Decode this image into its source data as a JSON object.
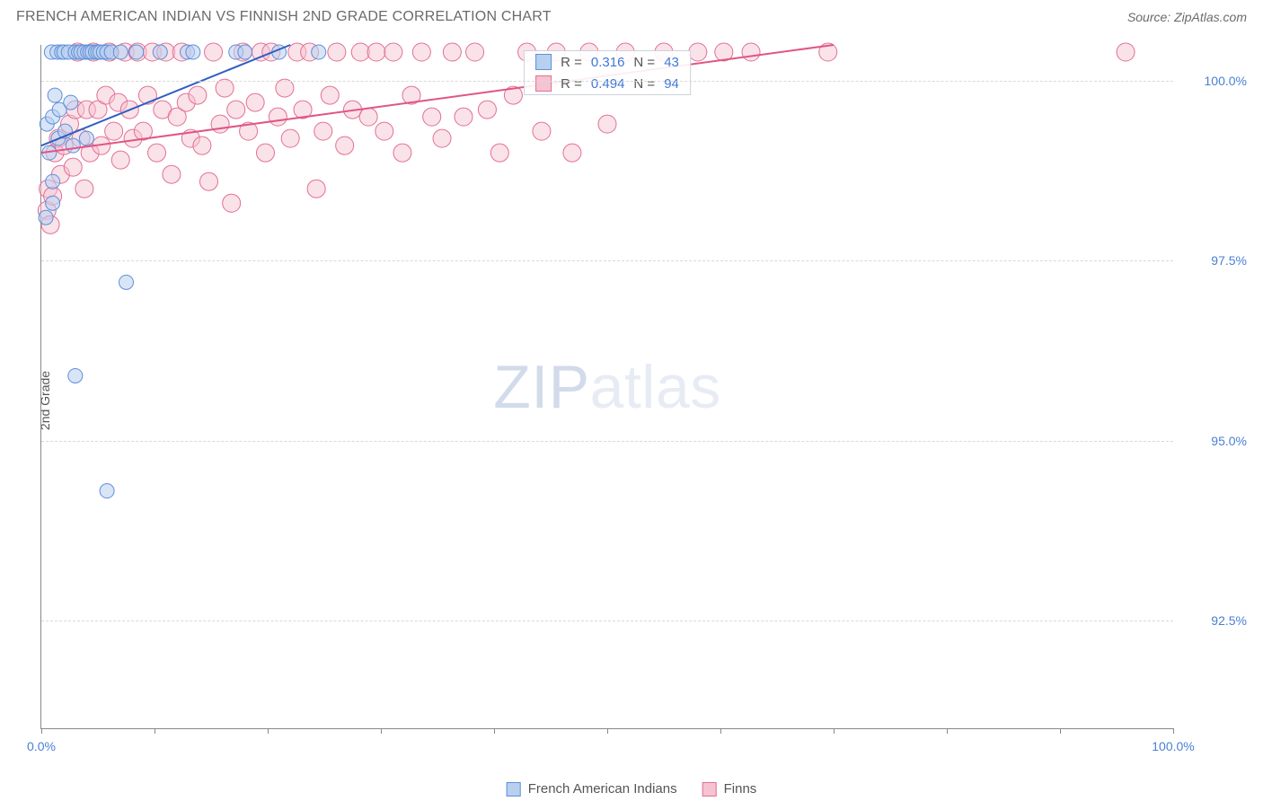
{
  "title": "FRENCH AMERICAN INDIAN VS FINNISH 2ND GRADE CORRELATION CHART",
  "source": "Source: ZipAtlas.com",
  "ylabel": "2nd Grade",
  "watermark": {
    "part1": "ZIP",
    "part2": "atlas"
  },
  "xlim": [
    0,
    100
  ],
  "ylim": [
    91,
    100.5
  ],
  "yticks": [
    {
      "v": 100.0,
      "label": "100.0%"
    },
    {
      "v": 97.5,
      "label": "97.5%"
    },
    {
      "v": 95.0,
      "label": "95.0%"
    },
    {
      "v": 92.5,
      "label": "92.5%"
    }
  ],
  "xticks": [
    0,
    10,
    20,
    30,
    40,
    50,
    60,
    70,
    80,
    90,
    100
  ],
  "xtick_labels": {
    "0": "0.0%",
    "100": "100.0%"
  },
  "series": [
    {
      "name": "French American Indians",
      "color_fill": "#b8d0f0",
      "color_stroke": "#5f8fd8",
      "marker_r": 8,
      "fill_opacity": 0.55,
      "R": "0.316",
      "N": "43",
      "trend": {
        "x1": 0,
        "y1": 99.1,
        "x2": 22,
        "y2": 100.5,
        "color": "#2f5fc0",
        "width": 2
      },
      "points": [
        [
          0.4,
          98.1
        ],
        [
          0.5,
          99.4
        ],
        [
          0.7,
          99.0
        ],
        [
          0.9,
          100.4
        ],
        [
          1.0,
          99.5
        ],
        [
          1.0,
          98.6
        ],
        [
          1.0,
          98.3
        ],
        [
          1.2,
          99.8
        ],
        [
          1.4,
          100.4
        ],
        [
          1.5,
          99.2
        ],
        [
          1.6,
          99.6
        ],
        [
          1.8,
          100.4
        ],
        [
          2.0,
          100.4
        ],
        [
          2.1,
          99.3
        ],
        [
          2.4,
          100.4
        ],
        [
          2.6,
          99.7
        ],
        [
          2.8,
          99.1
        ],
        [
          3.0,
          100.4
        ],
        [
          3.3,
          100.4
        ],
        [
          3.5,
          100.4
        ],
        [
          3.8,
          100.4
        ],
        [
          4.0,
          99.2
        ],
        [
          4.1,
          100.4
        ],
        [
          4.3,
          100.4
        ],
        [
          4.5,
          100.4
        ],
        [
          4.8,
          100.4
        ],
        [
          5.0,
          100.4
        ],
        [
          5.2,
          100.4
        ],
        [
          5.5,
          100.4
        ],
        [
          5.8,
          100.4
        ],
        [
          6.2,
          100.4
        ],
        [
          7.0,
          100.4
        ],
        [
          8.4,
          100.4
        ],
        [
          10.5,
          100.4
        ],
        [
          12.9,
          100.4
        ],
        [
          13.4,
          100.4
        ],
        [
          17.2,
          100.4
        ],
        [
          18.0,
          100.4
        ],
        [
          21.0,
          100.4
        ],
        [
          24.5,
          100.4
        ],
        [
          3.0,
          95.9
        ],
        [
          7.5,
          97.2
        ],
        [
          5.8,
          94.3
        ]
      ]
    },
    {
      "name": "Finns",
      "color_fill": "#f5c3d1",
      "color_stroke": "#e36f95",
      "marker_r": 10,
      "fill_opacity": 0.48,
      "R": "0.494",
      "N": "94",
      "trend": {
        "x1": 0,
        "y1": 99.0,
        "x2": 70,
        "y2": 100.5,
        "color": "#e05585",
        "width": 2
      },
      "points": [
        [
          0.5,
          98.2
        ],
        [
          0.6,
          98.5
        ],
        [
          0.8,
          98.0
        ],
        [
          1.0,
          98.4
        ],
        [
          1.2,
          99.0
        ],
        [
          1.5,
          99.2
        ],
        [
          1.7,
          98.7
        ],
        [
          2.0,
          99.1
        ],
        [
          2.5,
          99.4
        ],
        [
          2.8,
          98.8
        ],
        [
          3.0,
          99.6
        ],
        [
          3.2,
          100.4
        ],
        [
          3.5,
          99.2
        ],
        [
          3.8,
          98.5
        ],
        [
          4.0,
          99.6
        ],
        [
          4.3,
          99.0
        ],
        [
          4.6,
          100.4
        ],
        [
          5.0,
          99.6
        ],
        [
          5.3,
          99.1
        ],
        [
          5.7,
          99.8
        ],
        [
          6.0,
          100.4
        ],
        [
          6.4,
          99.3
        ],
        [
          6.8,
          99.7
        ],
        [
          7.0,
          98.9
        ],
        [
          7.4,
          100.4
        ],
        [
          7.8,
          99.6
        ],
        [
          8.1,
          99.2
        ],
        [
          8.5,
          100.4
        ],
        [
          9.0,
          99.3
        ],
        [
          9.4,
          99.8
        ],
        [
          9.8,
          100.4
        ],
        [
          10.2,
          99.0
        ],
        [
          10.7,
          99.6
        ],
        [
          11.0,
          100.4
        ],
        [
          11.5,
          98.7
        ],
        [
          12.0,
          99.5
        ],
        [
          12.4,
          100.4
        ],
        [
          12.8,
          99.7
        ],
        [
          13.2,
          99.2
        ],
        [
          13.8,
          99.8
        ],
        [
          14.2,
          99.1
        ],
        [
          14.8,
          98.6
        ],
        [
          15.2,
          100.4
        ],
        [
          15.8,
          99.4
        ],
        [
          16.2,
          99.9
        ],
        [
          16.8,
          98.3
        ],
        [
          17.2,
          99.6
        ],
        [
          17.8,
          100.4
        ],
        [
          18.3,
          99.3
        ],
        [
          18.9,
          99.7
        ],
        [
          19.4,
          100.4
        ],
        [
          19.8,
          99.0
        ],
        [
          20.3,
          100.4
        ],
        [
          20.9,
          99.5
        ],
        [
          21.5,
          99.9
        ],
        [
          22.0,
          99.2
        ],
        [
          22.6,
          100.4
        ],
        [
          23.1,
          99.6
        ],
        [
          23.7,
          100.4
        ],
        [
          24.3,
          98.5
        ],
        [
          24.9,
          99.3
        ],
        [
          25.5,
          99.8
        ],
        [
          26.1,
          100.4
        ],
        [
          26.8,
          99.1
        ],
        [
          27.5,
          99.6
        ],
        [
          28.2,
          100.4
        ],
        [
          28.9,
          99.5
        ],
        [
          29.6,
          100.4
        ],
        [
          30.3,
          99.3
        ],
        [
          31.1,
          100.4
        ],
        [
          31.9,
          99.0
        ],
        [
          32.7,
          99.8
        ],
        [
          33.6,
          100.4
        ],
        [
          34.5,
          99.5
        ],
        [
          35.4,
          99.2
        ],
        [
          36.3,
          100.4
        ],
        [
          37.3,
          99.5
        ],
        [
          38.3,
          100.4
        ],
        [
          39.4,
          99.6
        ],
        [
          40.5,
          99.0
        ],
        [
          41.7,
          99.8
        ],
        [
          42.9,
          100.4
        ],
        [
          44.2,
          99.3
        ],
        [
          45.5,
          100.4
        ],
        [
          46.9,
          99.0
        ],
        [
          48.4,
          100.4
        ],
        [
          50.0,
          99.4
        ],
        [
          51.6,
          100.4
        ],
        [
          55.0,
          100.4
        ],
        [
          58.0,
          100.4
        ],
        [
          60.3,
          100.4
        ],
        [
          62.7,
          100.4
        ],
        [
          69.5,
          100.4
        ],
        [
          95.8,
          100.4
        ]
      ]
    }
  ],
  "legend_bottom": [
    {
      "label": "French American Indians",
      "fill": "#b8d0f0",
      "stroke": "#5f8fd8"
    },
    {
      "label": "Finns",
      "fill": "#f5c3d1",
      "stroke": "#e36f95"
    }
  ]
}
